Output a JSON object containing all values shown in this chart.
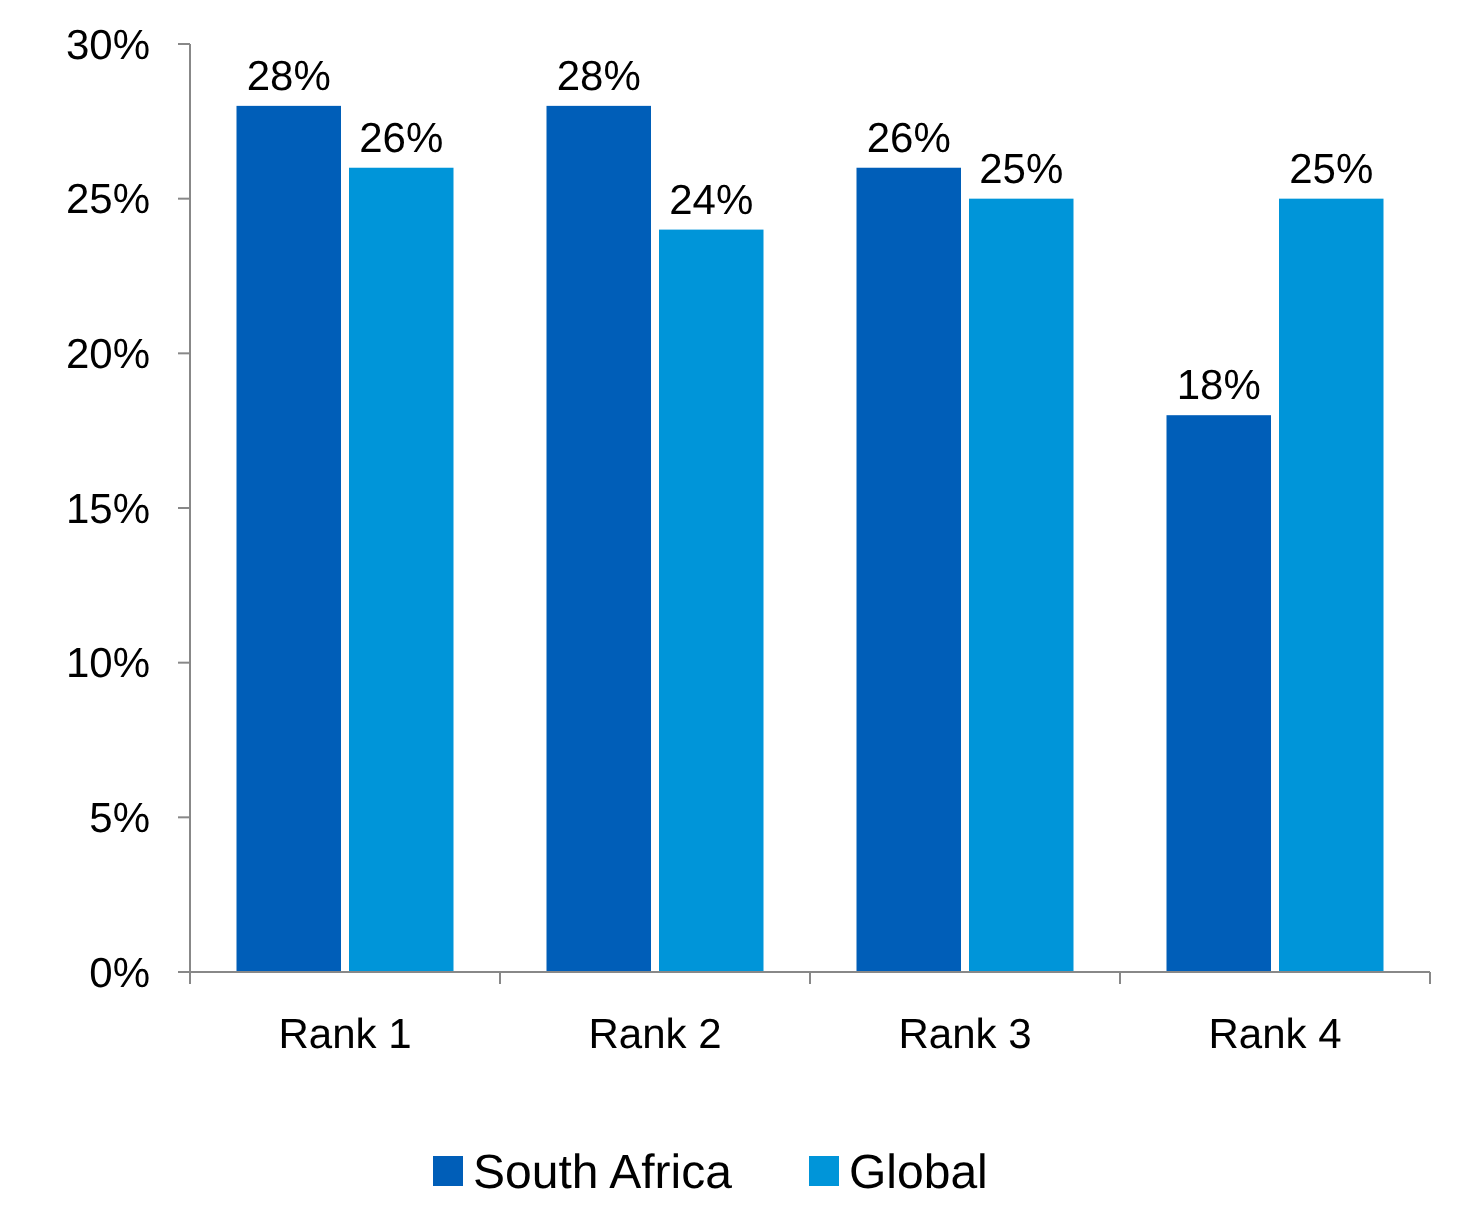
{
  "chart_data": {
    "type": "bar",
    "categories": [
      "Rank 1",
      "Rank 2",
      "Rank 3",
      "Rank 4"
    ],
    "series": [
      {
        "name": "South Africa",
        "color": "#005eb8",
        "values": [
          28,
          28,
          26,
          18
        ],
        "value_labels": [
          "28%",
          "28%",
          "26%",
          "18%"
        ]
      },
      {
        "name": "Global",
        "color": "#0095d9",
        "values": [
          26,
          24,
          25,
          25
        ],
        "value_labels": [
          "26%",
          "24%",
          "25%",
          "25%"
        ]
      }
    ],
    "ylim": [
      0,
      30
    ],
    "yticks": [
      {
        "value": 0,
        "label": "0%"
      },
      {
        "value": 5,
        "label": "5%"
      },
      {
        "value": 10,
        "label": "10%"
      },
      {
        "value": 15,
        "label": "15%"
      },
      {
        "value": 20,
        "label": "20%"
      },
      {
        "value": 25,
        "label": "25%"
      },
      {
        "value": 30,
        "label": "30%"
      }
    ],
    "grid": false,
    "legend": "bottom"
  }
}
